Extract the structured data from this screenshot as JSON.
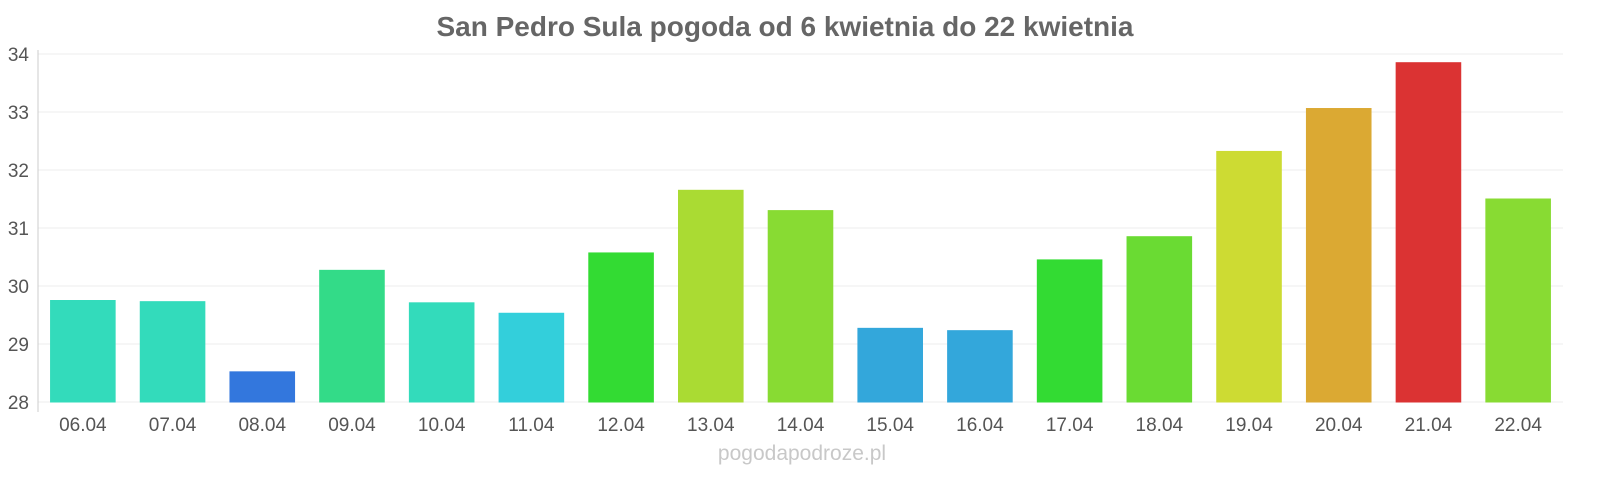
{
  "chart_data": {
    "type": "bar",
    "title": "San Pedro Sula pogoda od 6 kwietnia do 22 kwietnia",
    "xlabel": "",
    "ylabel": "",
    "ylim": [
      28,
      34
    ],
    "yticks": [
      "28",
      "29",
      "30",
      "31",
      "32",
      "33",
      "34"
    ],
    "grid": true,
    "categories": [
      "06.04",
      "07.04",
      "08.04",
      "09.04",
      "10.04",
      "11.04",
      "12.04",
      "13.04",
      "14.04",
      "15.04",
      "16.04",
      "17.04",
      "18.04",
      "19.04",
      "20.04",
      "21.04",
      "22.04"
    ],
    "values": [
      29.75,
      29.73,
      28.52,
      30.27,
      29.71,
      29.53,
      30.57,
      31.65,
      31.3,
      29.27,
      29.23,
      30.45,
      30.85,
      32.32,
      33.06,
      33.85,
      31.5
    ],
    "colors": [
      "#33dbbb",
      "#33dbbb",
      "#3377dd",
      "#33db88",
      "#33dbbb",
      "#33cfdb",
      "#33db33",
      "#aadb33",
      "#88db33",
      "#33a7db",
      "#33a7db",
      "#33db33",
      "#6adb33",
      "#cddb33",
      "#dba933",
      "#db3333",
      "#88db33"
    ]
  },
  "watermark": "pogodapodroze.pl"
}
